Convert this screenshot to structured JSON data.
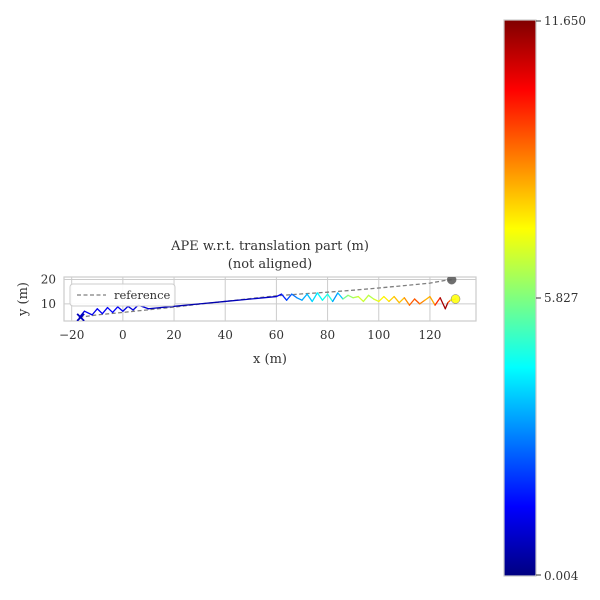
{
  "chart_data": {
    "type": "line",
    "title": "APE w.r.t. translation part (m)",
    "subtitle": "(not aligned)",
    "xlabel": "x (m)",
    "ylabel": "y (m)",
    "xlim": [
      -23,
      138
    ],
    "ylim": [
      3,
      21
    ],
    "xticks": [
      -20,
      0,
      20,
      40,
      60,
      80,
      100,
      120
    ],
    "yticks": [
      10,
      20
    ],
    "grid": true,
    "legend": {
      "placement": "upper-left",
      "entries": [
        "reference"
      ]
    },
    "colorbar": {
      "colormap": "jet",
      "min": 0.004,
      "max": 11.65,
      "tick_labels": [
        "0.004",
        "5.827",
        "11.650"
      ],
      "tick_values": [
        0.004,
        5.827,
        11.65
      ]
    },
    "series": [
      {
        "name": "reference",
        "style": "dashed",
        "color": "#7f7f7f",
        "x": [
          -17,
          -10,
          0,
          10,
          20,
          30,
          40,
          50,
          60,
          70,
          80,
          90,
          100,
          110,
          120,
          126,
          128.5
        ],
        "y": [
          4.5,
          5.5,
          6.5,
          7.6,
          8.7,
          9.9,
          11.0,
          12.2,
          13.3,
          14.1,
          14.8,
          15.6,
          16.5,
          17.5,
          18.5,
          19.6,
          19.9
        ]
      },
      {
        "name": "",
        "style": "error-colored",
        "x": [
          -17,
          -15,
          -12,
          -10,
          -8,
          -6,
          -4,
          -2,
          0,
          2,
          4,
          6,
          10,
          20,
          30,
          40,
          50,
          60,
          62,
          64,
          66,
          68,
          70,
          72,
          74,
          76,
          78,
          80,
          82,
          84,
          86,
          88,
          90,
          92,
          94,
          96,
          98,
          100,
          102,
          104,
          106,
          108,
          110,
          112,
          114,
          116,
          118,
          120,
          122,
          124,
          126,
          127,
          128,
          130
        ],
        "y": [
          4.5,
          7.0,
          5.5,
          8.0,
          6.0,
          8.5,
          6.5,
          8.8,
          7.0,
          9.0,
          7.5,
          9.5,
          8.0,
          9.0,
          10.0,
          11.0,
          12.0,
          13.0,
          14.0,
          11.5,
          14.0,
          12.5,
          11.5,
          14.0,
          11.0,
          14.5,
          11.5,
          14.0,
          11.0,
          14.5,
          12.0,
          13.5,
          12.5,
          13.0,
          11.0,
          13.5,
          12.0,
          11.0,
          13.0,
          11.0,
          13.0,
          10.5,
          12.5,
          9.5,
          12.0,
          10.0,
          11.5,
          13.0,
          9.5,
          12.5,
          8.0,
          10.5,
          11.5,
          12.0
        ],
        "error": [
          0.3,
          1.5,
          1.0,
          1.5,
          1.2,
          1.5,
          1.3,
          1.5,
          1.2,
          1.0,
          1.0,
          1.2,
          0.8,
          0.6,
          0.5,
          0.6,
          0.7,
          0.9,
          1.4,
          2.2,
          2.5,
          3.0,
          3.3,
          3.6,
          3.8,
          4.2,
          4.5,
          4.8,
          4.6,
          1.8,
          5.6,
          5.9,
          6.3,
          6.6,
          7.0,
          6.2,
          6.6,
          7.1,
          7.6,
          7.3,
          8.3,
          7.7,
          8.3,
          8.9,
          9.4,
          9.0,
          8.4,
          7.9,
          8.7,
          10.8,
          11.6,
          11.0,
          7.6,
          7.1
        ]
      }
    ],
    "markers": [
      {
        "name": "start",
        "symbol": "x",
        "x": -16.5,
        "y": 4.5,
        "color": "#0000bb"
      },
      {
        "name": "end-reference",
        "symbol": "circle",
        "x": 128.5,
        "y": 19.9,
        "color": "#555555"
      },
      {
        "name": "end-estimate",
        "symbol": "circle",
        "x": 130,
        "y": 12.0,
        "color": "#ffff00"
      }
    ]
  }
}
